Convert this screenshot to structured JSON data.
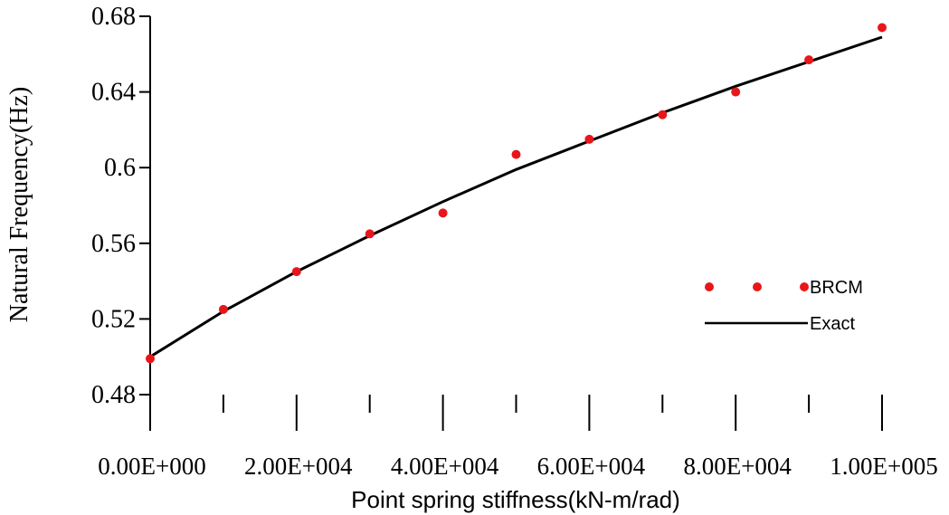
{
  "chart_data": {
    "type": "scatter",
    "xlabel": "Point spring stiffness(kN-m/rad)",
    "ylabel": "Natural Frequency(Hz)",
    "xlim": [
      0,
      100000
    ],
    "ylim": [
      0.48,
      0.68
    ],
    "y_ticks": [
      "0.48",
      "0.52",
      "0.56",
      "0.6",
      "0.64",
      "0.68"
    ],
    "y_tick_values": [
      0.48,
      0.52,
      0.56,
      0.6,
      0.64,
      0.68
    ],
    "x_tick_labels": [
      "0.00E+000",
      "2.00E+004",
      "4.00E+004",
      "6.00E+004",
      "8.00E+004",
      "1.00E+005"
    ],
    "x_tick_values": [
      0,
      20000,
      40000,
      60000,
      80000,
      100000
    ],
    "x_minor_tick_values": [
      10000,
      30000,
      50000,
      70000,
      90000
    ],
    "grid": false,
    "legend_position": "right",
    "series": [
      {
        "name": "BRCM",
        "style": "markers",
        "color": "#e8161b",
        "x": [
          0,
          10000,
          20000,
          30000,
          40000,
          50000,
          60000,
          70000,
          80000,
          90000,
          100000
        ],
        "y": [
          0.499,
          0.525,
          0.545,
          0.565,
          0.576,
          0.607,
          0.615,
          0.628,
          0.64,
          0.657,
          0.674
        ]
      },
      {
        "name": "Exact",
        "style": "line",
        "color": "#000000",
        "x": [
          0,
          10000,
          20000,
          30000,
          40000,
          50000,
          60000,
          70000,
          80000,
          90000,
          100000
        ],
        "y": [
          0.5,
          0.524,
          0.545,
          0.564,
          0.582,
          0.599,
          0.614,
          0.629,
          0.643,
          0.656,
          0.669
        ]
      }
    ]
  }
}
